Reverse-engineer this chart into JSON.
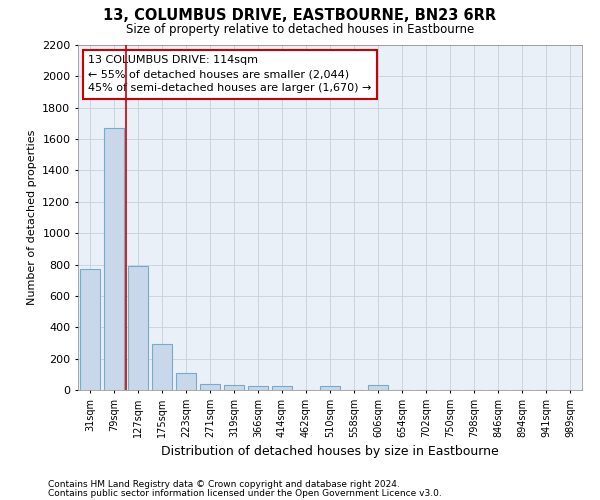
{
  "title": "13, COLUMBUS DRIVE, EASTBOURNE, BN23 6RR",
  "subtitle": "Size of property relative to detached houses in Eastbourne",
  "xlabel": "Distribution of detached houses by size in Eastbourne",
  "ylabel": "Number of detached properties",
  "categories": [
    "31sqm",
    "79sqm",
    "127sqm",
    "175sqm",
    "223sqm",
    "271sqm",
    "319sqm",
    "366sqm",
    "414sqm",
    "462sqm",
    "510sqm",
    "558sqm",
    "606sqm",
    "654sqm",
    "702sqm",
    "750sqm",
    "798sqm",
    "846sqm",
    "894sqm",
    "941sqm",
    "989sqm"
  ],
  "values": [
    770,
    1670,
    790,
    295,
    110,
    40,
    30,
    25,
    25,
    0,
    25,
    0,
    30,
    0,
    0,
    0,
    0,
    0,
    0,
    0,
    0
  ],
  "bar_color": "#c8d8ea",
  "bar_edge_color": "#7aaac8",
  "grid_color": "#c8d0da",
  "red_line_x": 1.5,
  "annotation_line1": "13 COLUMBUS DRIVE: 114sqm",
  "annotation_line2": "← 55% of detached houses are smaller (2,044)",
  "annotation_line3": "45% of semi-detached houses are larger (1,670) →",
  "annotation_box_color": "#ffffff",
  "annotation_box_edge": "#cc0000",
  "ylim": [
    0,
    2200
  ],
  "yticks": [
    0,
    200,
    400,
    600,
    800,
    1000,
    1200,
    1400,
    1600,
    1800,
    2000,
    2200
  ],
  "footnote1": "Contains HM Land Registry data © Crown copyright and database right 2024.",
  "footnote2": "Contains public sector information licensed under the Open Government Licence v3.0.",
  "bg_color": "#ffffff",
  "plot_bg_color": "#eaf0f8"
}
